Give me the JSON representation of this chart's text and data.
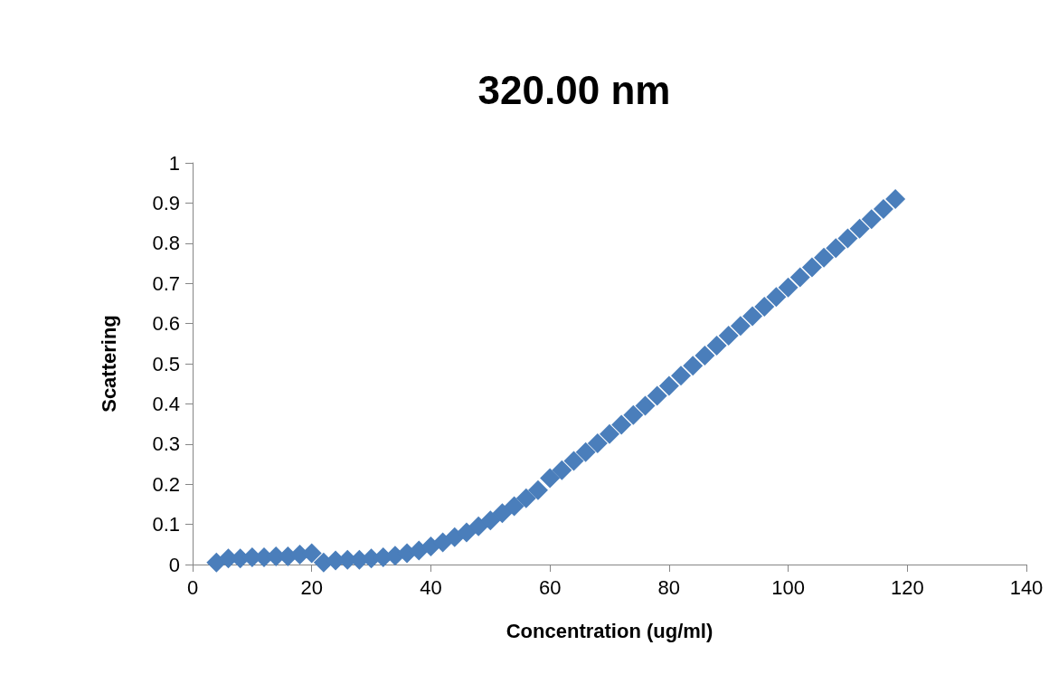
{
  "chart_data": {
    "type": "scatter",
    "title": "320.00 nm",
    "xlabel": "Concentration (ug/ml)",
    "ylabel": "Scattering",
    "x": [
      4,
      6,
      8,
      10,
      12,
      14,
      16,
      18,
      20,
      22,
      24,
      26,
      28,
      30,
      32,
      34,
      36,
      38,
      40,
      42,
      44,
      46,
      48,
      50,
      52,
      54,
      56,
      58,
      60,
      62,
      64,
      66,
      68,
      70,
      72,
      74,
      76,
      78,
      80,
      82,
      84,
      86,
      88,
      90,
      92,
      94,
      96,
      98,
      100,
      102,
      104,
      106,
      108,
      110,
      112,
      114,
      116,
      118
    ],
    "series": [
      {
        "color": "#4a7ebb",
        "values": [
          0.005,
          0.015,
          0.015,
          0.018,
          0.018,
          0.02,
          0.02,
          0.025,
          0.028,
          0.005,
          0.01,
          0.012,
          0.012,
          0.015,
          0.018,
          0.022,
          0.028,
          0.035,
          0.045,
          0.055,
          0.068,
          0.08,
          0.095,
          0.11,
          0.128,
          0.145,
          0.165,
          0.185,
          0.215,
          0.235,
          0.258,
          0.28,
          0.302,
          0.325,
          0.348,
          0.372,
          0.395,
          0.42,
          0.445,
          0.47,
          0.495,
          0.52,
          0.545,
          0.57,
          0.594,
          0.618,
          0.642,
          0.666,
          0.69,
          0.715,
          0.74,
          0.764,
          0.788,
          0.812,
          0.836,
          0.86,
          0.885,
          0.91
        ]
      }
    ],
    "xlim": [
      0,
      140
    ],
    "xticks": [
      0,
      20,
      40,
      60,
      80,
      100,
      120,
      140
    ],
    "ylim": [
      0,
      1
    ],
    "yticks": [
      0,
      0.1,
      0.2,
      0.3,
      0.4,
      0.5,
      0.6,
      0.7,
      0.8,
      0.9,
      1
    ],
    "grid": false,
    "marker": "diamond"
  }
}
